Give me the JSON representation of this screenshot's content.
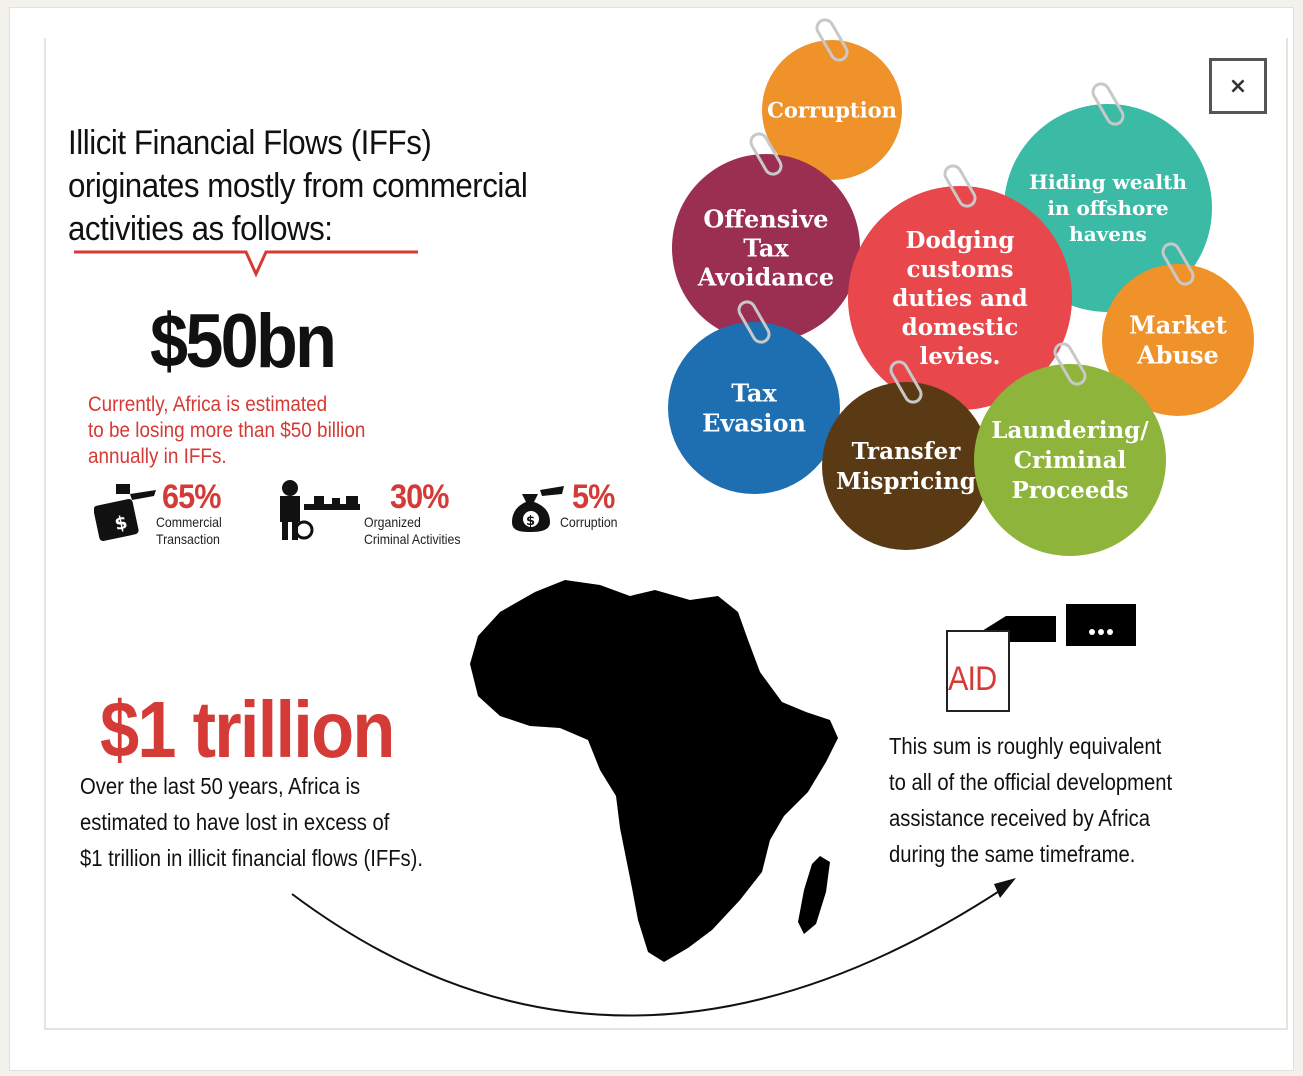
{
  "dialog": {
    "close_label": "×"
  },
  "headline": {
    "line1": "Illicit Financial Flows (IFFs)",
    "line2": "originates mostly from commercial",
    "line3": "activities  as follows:"
  },
  "loss": {
    "amount": "$50bn",
    "desc_line1": "Currently, Africa is estimated",
    "desc_line2": "to be losing more than $50 billion",
    "desc_line3": "annually in IFFs."
  },
  "breakdown": [
    {
      "percent": "65%",
      "label_line1": "Commercial",
      "label_line2": "Transaction",
      "icon": "money-bag-icon",
      "value": 65
    },
    {
      "percent": "30%",
      "label_line1": "Organized",
      "label_line2": "Criminal Activities",
      "icon": "criminal-icon",
      "value": 30
    },
    {
      "percent": "5%",
      "label_line1": "Corruption",
      "label_line2": "",
      "icon": "money-bag-icon",
      "value": 5
    }
  ],
  "sources": {
    "corruption": {
      "lines": [
        "Corruption"
      ],
      "color": "#f0922a"
    },
    "offensive": {
      "lines": [
        "Offensive",
        "Tax",
        "Avoidance"
      ],
      "color": "#9a2f52"
    },
    "hiding": {
      "lines": [
        "Hiding wealth",
        "in offshore",
        "havens"
      ],
      "color": "#3bbaa6"
    },
    "dodging": {
      "lines": [
        "Dodging",
        "customs",
        "duties and",
        "domestic",
        "levies."
      ],
      "color": "#e8484c"
    },
    "market": {
      "lines": [
        "Market",
        "Abuse"
      ],
      "color": "#f0922a"
    },
    "evasion": {
      "lines": [
        "Tax",
        "Evasion"
      ],
      "color": "#1d6fb2"
    },
    "transfer": {
      "lines": [
        "Transfer",
        "Mispricing"
      ],
      "color": "#5a3a14"
    },
    "laundering": {
      "lines": [
        "Laundering/",
        "Criminal",
        "Proceeds"
      ],
      "color": "#8fb43c"
    }
  },
  "trillion": {
    "amount": "$1 trillion",
    "line1": "Over the last 50 years, Africa is",
    "line2": "estimated to have lost in excess of",
    "line3": "$1 trillion in illicit financial flows (IFFs)."
  },
  "aid": {
    "label": "AID",
    "line1": "This sum is roughly equivalent",
    "line2": "to all of the official development",
    "line3": "assistance received by Africa",
    "line4": "during the same timeframe."
  },
  "colors": {
    "accent_red": "#d43a36",
    "text": "#111111"
  }
}
